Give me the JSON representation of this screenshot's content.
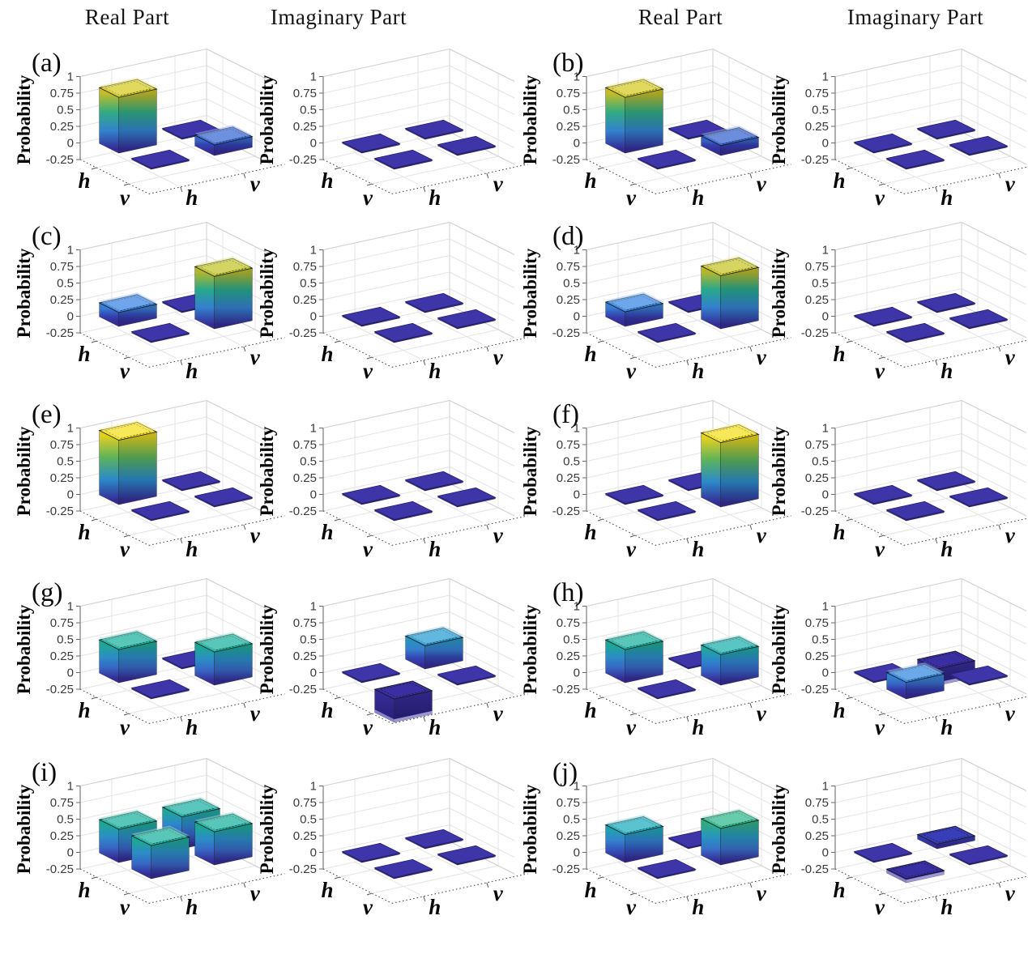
{
  "page": {
    "background": "#ffffff"
  },
  "chart_data": {
    "type": "bar3",
    "headers": [
      "Real Part",
      "Imaginary Part",
      "Real Part",
      "Imaginary Part"
    ],
    "zlabel": "Probability",
    "ztick_labels": [
      "1",
      "0.75",
      "0.5",
      "0.25",
      "0",
      "-0.25"
    ],
    "zticks": [
      1,
      0.75,
      0.5,
      0.25,
      0,
      -0.25
    ],
    "zlim": [
      -0.25,
      1
    ],
    "row_axis_labels": [
      "h",
      "v"
    ],
    "col_axis_labels": [
      "h",
      "v"
    ],
    "panels": [
      {
        "label": "(a)",
        "real": [
          [
            0.84,
            0
          ],
          [
            0,
            0.16
          ]
        ],
        "imag": [
          [
            0,
            0
          ],
          [
            0,
            0
          ]
        ]
      },
      {
        "label": "(b)",
        "real": [
          [
            0.84,
            0
          ],
          [
            0,
            0.15
          ]
        ],
        "imag": [
          [
            0,
            0
          ],
          [
            0,
            0
          ]
        ]
      },
      {
        "label": "(c)",
        "real": [
          [
            0.21,
            0
          ],
          [
            0,
            0.79
          ]
        ],
        "imag": [
          [
            0,
            0
          ],
          [
            0,
            0
          ]
        ]
      },
      {
        "label": "(d)",
        "real": [
          [
            0.22,
            0
          ],
          [
            0,
            0.8
          ]
        ],
        "imag": [
          [
            0,
            0
          ],
          [
            0,
            0
          ]
        ]
      },
      {
        "label": "(e)",
        "real": [
          [
            0.97,
            0
          ],
          [
            0,
            0
          ]
        ],
        "imag": [
          [
            0,
            0
          ],
          [
            0,
            0
          ]
        ]
      },
      {
        "label": "(f)",
        "real": [
          [
            0,
            0
          ],
          [
            0,
            0.97
          ]
        ],
        "imag": [
          [
            0,
            0
          ],
          [
            0,
            0
          ]
        ]
      },
      {
        "label": "(g)",
        "real": [
          [
            0.5,
            0
          ],
          [
            0,
            0.5
          ]
        ],
        "imag": [
          [
            0,
            0.35
          ],
          [
            -0.35,
            0
          ]
        ]
      },
      {
        "label": "(h)",
        "real": [
          [
            0.5,
            0
          ],
          [
            0,
            0.46
          ]
        ],
        "imag": [
          [
            0,
            -0.25
          ],
          [
            0.25,
            0
          ]
        ]
      },
      {
        "label": "(i)",
        "real": [
          [
            0.5,
            0.48
          ],
          [
            0.5,
            0.5
          ]
        ],
        "imag": [
          [
            0,
            0
          ],
          [
            0,
            0
          ]
        ]
      },
      {
        "label": "(j)",
        "real": [
          [
            0.42,
            0
          ],
          [
            0,
            0.55
          ]
        ],
        "imag": [
          [
            0,
            0.07
          ],
          [
            -0.06,
            0
          ]
        ]
      }
    ],
    "colors": {
      "colormap": [
        [
          0,
          "#3a2fa2"
        ],
        [
          0.1,
          "#3745c0"
        ],
        [
          0.2,
          "#3f86e2"
        ],
        [
          0.3,
          "#3390e0"
        ],
        [
          0.4,
          "#24aec6"
        ],
        [
          0.5,
          "#21b4a2"
        ],
        [
          0.6,
          "#45bf7a"
        ],
        [
          0.7,
          "#8cc447"
        ],
        [
          0.8,
          "#c8c72c"
        ],
        [
          0.9,
          "#edd325"
        ],
        [
          1,
          "#f9e721"
        ]
      ],
      "tile": "#3e35a9",
      "negative_bottom": "#2c2488",
      "negative_rim": "#b2abe8",
      "grid": "#e4e4e4",
      "wall_edge": "#d2d2d2",
      "axis_dotted": "#4a4a4a",
      "z_axis": "#7a7a7a",
      "tick_text": "#3a3a3a",
      "label_text": "#0a0a0a",
      "bar_edge": "#141414"
    }
  }
}
